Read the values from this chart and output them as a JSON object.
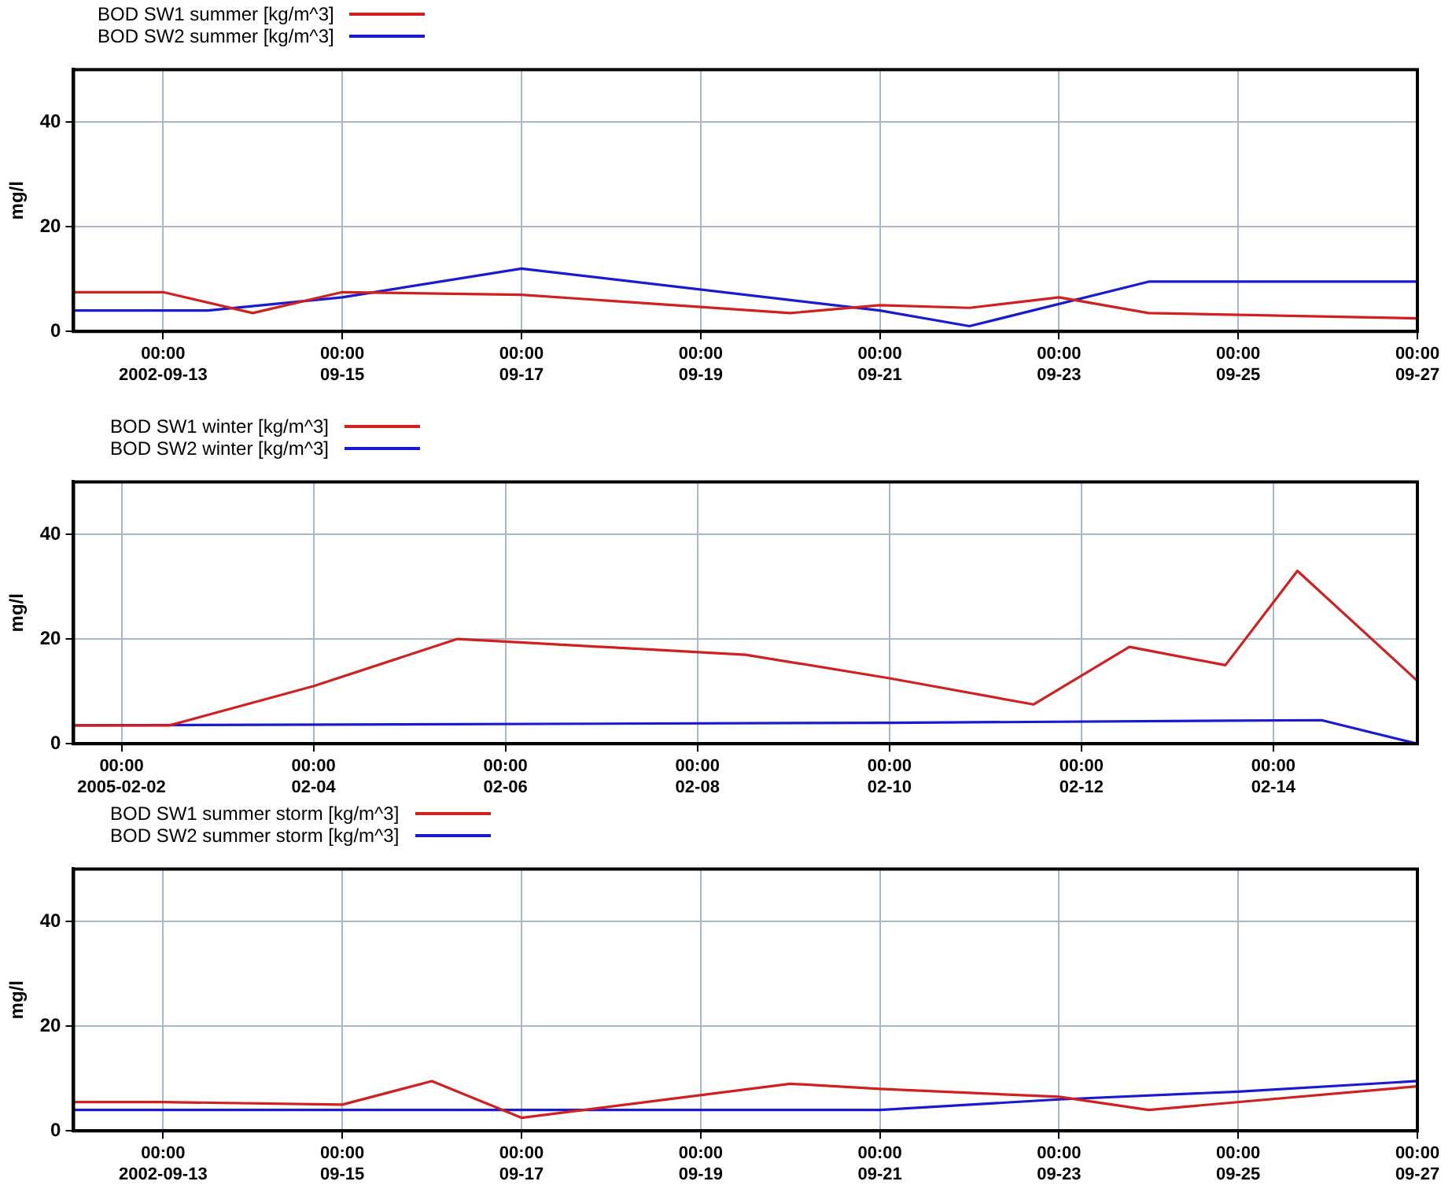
{
  "chart_data": [
    {
      "type": "line",
      "ylabel": "mg/l",
      "legend": "top left",
      "grid": true,
      "marker": "none",
      "line_style": "solid",
      "xlim": [
        "2002-09-12",
        "2002-09-27"
      ],
      "ylim": [
        0,
        50
      ],
      "yticks": [
        0,
        20,
        40
      ],
      "xticks": [
        {
          "value": "2002-09-13",
          "label": "00:00\n2002-09-13"
        },
        {
          "value": "2002-09-15",
          "label": "00:00\n09-15"
        },
        {
          "value": "2002-09-17",
          "label": "00:00\n09-17"
        },
        {
          "value": "2002-09-19",
          "label": "00:00\n09-19"
        },
        {
          "value": "2002-09-21",
          "label": "00:00\n09-21"
        },
        {
          "value": "2002-09-23",
          "label": "00:00\n09-23"
        },
        {
          "value": "2002-09-25",
          "label": "00:00\n09-25"
        },
        {
          "value": "2002-09-27",
          "label": "00:00\n09-27"
        }
      ],
      "series": [
        {
          "name": "BOD SW1 summer [kg/m^3]",
          "color": "#d02020",
          "x": [
            "2002-09-12",
            "2002-09-13",
            "2002-09-14",
            "2002-09-15",
            "2002-09-17",
            "2002-09-20",
            "2002-09-21",
            "2002-09-22",
            "2002-09-23",
            "2002-09-24",
            "2002-09-27"
          ],
          "values": [
            7.5,
            7.5,
            3.5,
            7.5,
            7,
            3.5,
            5,
            4.5,
            6.5,
            3.5,
            2.5
          ]
        },
        {
          "name": "BOD SW2 summer [kg/m^3]",
          "color": "#1a1ad0",
          "x": [
            "2002-09-12",
            "2002-09-13T12:00",
            "2002-09-15",
            "2002-09-17",
            "2002-09-21",
            "2002-09-22",
            "2002-09-24",
            "2002-09-27"
          ],
          "values": [
            4,
            4,
            6.5,
            12,
            4,
            1,
            9.5,
            9.5
          ]
        }
      ]
    },
    {
      "type": "line",
      "ylabel": "mg/l",
      "legend": "top left",
      "grid": true,
      "marker": "none",
      "line_style": "solid",
      "xlim": [
        "2005-02-01T12:00",
        "2005-02-15T12:00"
      ],
      "ylim": [
        0,
        50
      ],
      "yticks": [
        0,
        20,
        40
      ],
      "xticks": [
        {
          "value": "2005-02-02",
          "label": "00:00\n2005-02-02"
        },
        {
          "value": "2005-02-04",
          "label": "00:00\n02-04"
        },
        {
          "value": "2005-02-06",
          "label": "00:00\n02-06"
        },
        {
          "value": "2005-02-08",
          "label": "00:00\n02-08"
        },
        {
          "value": "2005-02-10",
          "label": "00:00\n02-10"
        },
        {
          "value": "2005-02-12",
          "label": "00:00\n02-12"
        },
        {
          "value": "2005-02-14",
          "label": "00:00\n02-14"
        }
      ],
      "series": [
        {
          "name": "BOD SW1 winter [kg/m^3]",
          "color": "#d02020",
          "x": [
            "2005-02-01T12:00",
            "2005-02-02T12:00",
            "2005-02-04",
            "2005-02-05T12:00",
            "2005-02-06",
            "2005-02-08T12:00",
            "2005-02-10",
            "2005-02-11T12:00",
            "2005-02-12T12:00",
            "2005-02-13T12:00",
            "2005-02-14T06:00",
            "2005-02-15T12:00"
          ],
          "values": [
            3.5,
            3.5,
            11,
            20,
            19.5,
            17,
            12.5,
            7.5,
            18.5,
            15,
            33,
            12
          ]
        },
        {
          "name": "BOD SW2 winter [kg/m^3]",
          "color": "#1a1ad0",
          "x": [
            "2005-02-01T12:00",
            "2005-02-10",
            "2005-02-14T12:00",
            "2005-02-15T12:00"
          ],
          "values": [
            3.5,
            4,
            4.5,
            0
          ]
        }
      ]
    },
    {
      "type": "line",
      "ylabel": "mg/l",
      "legend": "top left",
      "grid": true,
      "marker": "none",
      "line_style": "solid",
      "xlim": [
        "2002-09-12",
        "2002-09-27"
      ],
      "ylim": [
        0,
        50
      ],
      "yticks": [
        0,
        20,
        40
      ],
      "xticks": [
        {
          "value": "2002-09-13",
          "label": "00:00\n2002-09-13"
        },
        {
          "value": "2002-09-15",
          "label": "00:00\n09-15"
        },
        {
          "value": "2002-09-17",
          "label": "00:00\n09-17"
        },
        {
          "value": "2002-09-19",
          "label": "00:00\n09-19"
        },
        {
          "value": "2002-09-21",
          "label": "00:00\n09-21"
        },
        {
          "value": "2002-09-23",
          "label": "00:00\n09-23"
        },
        {
          "value": "2002-09-25",
          "label": "00:00\n09-25"
        },
        {
          "value": "2002-09-27",
          "label": "00:00\n09-27"
        }
      ],
      "series": [
        {
          "name": "BOD SW1 summer storm [kg/m^3]",
          "color": "#d02020",
          "x": [
            "2002-09-12",
            "2002-09-13",
            "2002-09-15",
            "2002-09-16",
            "2002-09-17",
            "2002-09-20",
            "2002-09-21",
            "2002-09-23",
            "2002-09-24",
            "2002-09-27"
          ],
          "values": [
            5.5,
            5.5,
            5,
            9.5,
            2.5,
            9,
            8,
            6.5,
            4,
            8.5
          ]
        },
        {
          "name": "BOD SW2 summer storm [kg/m^3]",
          "color": "#1a1ad0",
          "x": [
            "2002-09-12",
            "2002-09-21",
            "2002-09-23",
            "2002-09-25",
            "2002-09-27"
          ],
          "values": [
            4,
            4,
            6,
            7.5,
            9.5
          ]
        }
      ]
    }
  ]
}
